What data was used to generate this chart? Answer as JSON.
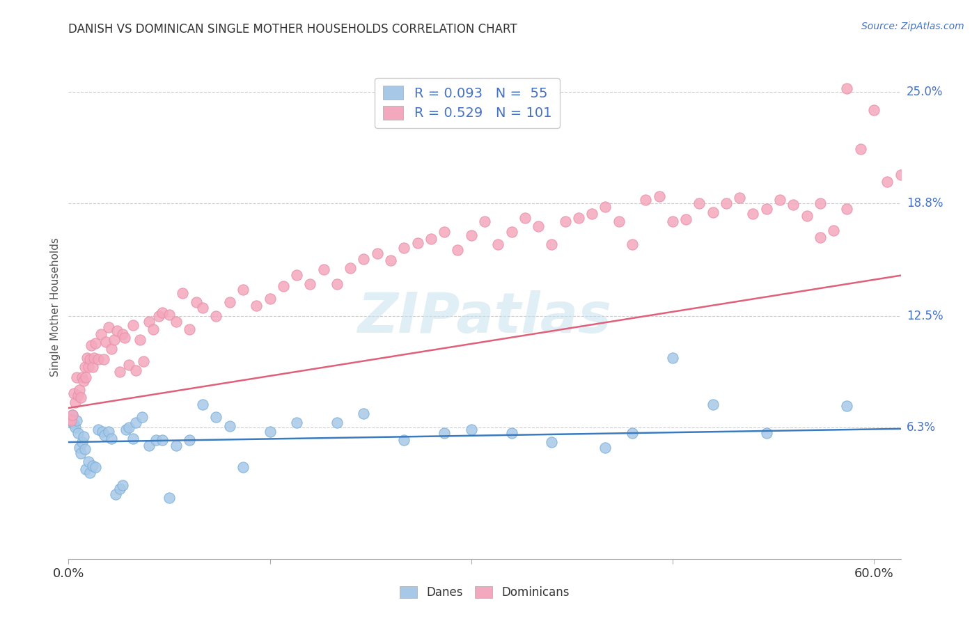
{
  "title": "DANISH VS DOMINICAN SINGLE MOTHER HOUSEHOLDS CORRELATION CHART",
  "source": "Source: ZipAtlas.com",
  "ylabel": "Single Mother Households",
  "xlim": [
    0.0,
    0.62
  ],
  "ylim": [
    -0.01,
    0.27
  ],
  "danes_color": "#a8c8e8",
  "dominicans_color": "#f4a8be",
  "danes_line_color": "#3a7abf",
  "dominicans_line_color": "#e0607a",
  "danes_R": 0.093,
  "danes_N": 55,
  "dominicans_R": 0.529,
  "dominicans_N": 101,
  "danes_intercept": 0.055,
  "danes_slope": 0.012,
  "dominicans_intercept": 0.074,
  "dominicans_slope": 0.119,
  "watermark": "ZIPatlas",
  "legend_R_color": "#4472c4",
  "legend_text_color": "#222222",
  "y_tick_vals": [
    0.063,
    0.125,
    0.188,
    0.25
  ],
  "y_tick_labels": [
    "6.3%",
    "12.5%",
    "18.8%",
    "25.0%"
  ],
  "danes_x": [
    0.001,
    0.002,
    0.003,
    0.004,
    0.005,
    0.006,
    0.007,
    0.008,
    0.009,
    0.01,
    0.011,
    0.012,
    0.013,
    0.015,
    0.016,
    0.018,
    0.02,
    0.022,
    0.025,
    0.027,
    0.03,
    0.032,
    0.035,
    0.038,
    0.04,
    0.043,
    0.045,
    0.048,
    0.05,
    0.055,
    0.06,
    0.065,
    0.07,
    0.075,
    0.08,
    0.09,
    0.1,
    0.11,
    0.12,
    0.13,
    0.15,
    0.17,
    0.2,
    0.22,
    0.25,
    0.28,
    0.3,
    0.33,
    0.36,
    0.4,
    0.42,
    0.45,
    0.48,
    0.52,
    0.58
  ],
  "danes_y": [
    0.068,
    0.066,
    0.07,
    0.065,
    0.063,
    0.067,
    0.06,
    0.052,
    0.049,
    0.055,
    0.058,
    0.051,
    0.04,
    0.044,
    0.038,
    0.042,
    0.041,
    0.062,
    0.061,
    0.059,
    0.061,
    0.057,
    0.026,
    0.029,
    0.031,
    0.062,
    0.063,
    0.057,
    0.066,
    0.069,
    0.053,
    0.056,
    0.056,
    0.024,
    0.053,
    0.056,
    0.076,
    0.069,
    0.064,
    0.041,
    0.061,
    0.066,
    0.066,
    0.071,
    0.056,
    0.06,
    0.062,
    0.06,
    0.055,
    0.052,
    0.06,
    0.102,
    0.076,
    0.06,
    0.075
  ],
  "dominicans_x": [
    0.001,
    0.002,
    0.003,
    0.004,
    0.005,
    0.006,
    0.007,
    0.008,
    0.009,
    0.01,
    0.011,
    0.012,
    0.013,
    0.014,
    0.015,
    0.016,
    0.017,
    0.018,
    0.019,
    0.02,
    0.022,
    0.024,
    0.026,
    0.028,
    0.03,
    0.032,
    0.034,
    0.036,
    0.038,
    0.04,
    0.042,
    0.045,
    0.048,
    0.05,
    0.053,
    0.056,
    0.06,
    0.063,
    0.067,
    0.07,
    0.075,
    0.08,
    0.085,
    0.09,
    0.095,
    0.1,
    0.11,
    0.12,
    0.13,
    0.14,
    0.15,
    0.16,
    0.17,
    0.18,
    0.19,
    0.2,
    0.21,
    0.22,
    0.23,
    0.24,
    0.25,
    0.26,
    0.27,
    0.28,
    0.29,
    0.3,
    0.31,
    0.32,
    0.33,
    0.34,
    0.35,
    0.36,
    0.37,
    0.38,
    0.39,
    0.4,
    0.41,
    0.42,
    0.43,
    0.44,
    0.45,
    0.46,
    0.47,
    0.48,
    0.49,
    0.5,
    0.51,
    0.52,
    0.53,
    0.54,
    0.55,
    0.56,
    0.57,
    0.58,
    0.59,
    0.6,
    0.61,
    0.62,
    0.63,
    0.58,
    0.56
  ],
  "dominicans_y": [
    0.068,
    0.067,
    0.07,
    0.082,
    0.077,
    0.091,
    0.081,
    0.084,
    0.08,
    0.091,
    0.089,
    0.097,
    0.091,
    0.102,
    0.097,
    0.101,
    0.109,
    0.097,
    0.102,
    0.11,
    0.101,
    0.115,
    0.101,
    0.111,
    0.119,
    0.107,
    0.112,
    0.117,
    0.094,
    0.115,
    0.113,
    0.098,
    0.12,
    0.095,
    0.112,
    0.1,
    0.122,
    0.118,
    0.125,
    0.127,
    0.126,
    0.122,
    0.138,
    0.118,
    0.133,
    0.13,
    0.125,
    0.133,
    0.14,
    0.131,
    0.135,
    0.142,
    0.148,
    0.143,
    0.151,
    0.143,
    0.152,
    0.157,
    0.16,
    0.156,
    0.163,
    0.166,
    0.168,
    0.172,
    0.162,
    0.17,
    0.178,
    0.165,
    0.172,
    0.18,
    0.175,
    0.165,
    0.178,
    0.18,
    0.182,
    0.186,
    0.178,
    0.165,
    0.19,
    0.192,
    0.178,
    0.179,
    0.188,
    0.183,
    0.188,
    0.191,
    0.182,
    0.185,
    0.19,
    0.187,
    0.181,
    0.169,
    0.173,
    0.252,
    0.218,
    0.24,
    0.2,
    0.204,
    0.196,
    0.185,
    0.188
  ]
}
